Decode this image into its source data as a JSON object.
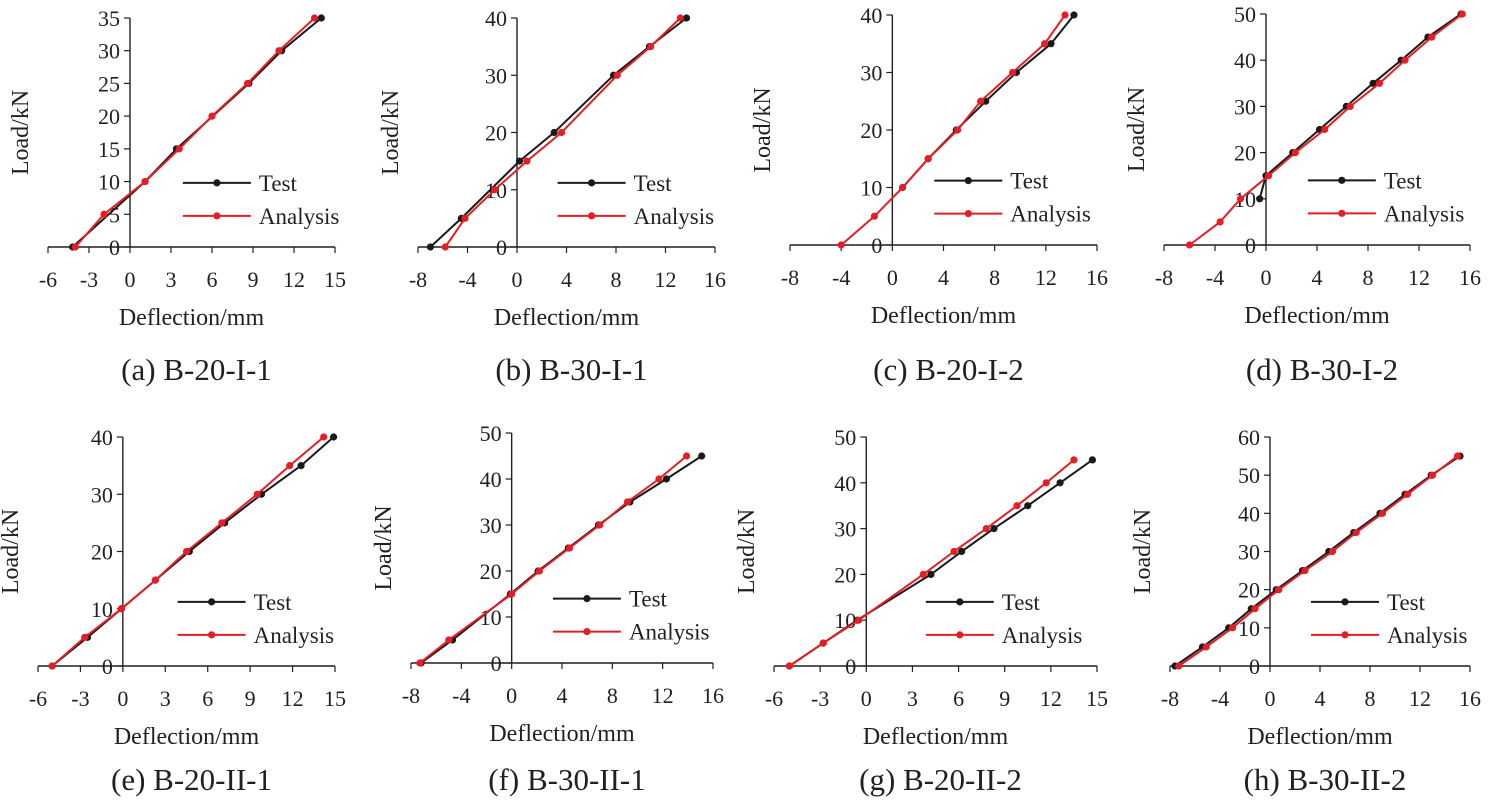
{
  "figure": {
    "colors": {
      "test": "#1a1a1a",
      "analysis": "#e31e24",
      "axis": "#231f20"
    }
  },
  "chart_data": [
    {
      "type": "line",
      "caption": "(a) B-20-I-1",
      "xlabel": "Deflection/mm",
      "ylabel": "Load/kN",
      "xlim": [
        -6,
        15
      ],
      "ylim": [
        0,
        35
      ],
      "xticks": [
        -6,
        -3,
        0,
        3,
        6,
        9,
        12,
        15
      ],
      "yticks": [
        0,
        5,
        10,
        15,
        20,
        25,
        30,
        35
      ],
      "legend": [
        "Test",
        "Analysis"
      ],
      "series": [
        {
          "name": "Test",
          "color": "#1a1a1a",
          "points": [
            [
              -4.2,
              0
            ],
            [
              1.1,
              10
            ],
            [
              3.4,
              15
            ],
            [
              8.7,
              25
            ],
            [
              11.1,
              30
            ],
            [
              14.0,
              35
            ]
          ]
        },
        {
          "name": "Analysis",
          "color": "#e31e24",
          "points": [
            [
              -4.0,
              0
            ],
            [
              -1.9,
              5
            ],
            [
              1.1,
              10
            ],
            [
              3.6,
              15
            ],
            [
              6.0,
              20
            ],
            [
              8.6,
              25
            ],
            [
              10.9,
              30
            ],
            [
              13.5,
              35
            ]
          ]
        }
      ]
    },
    {
      "type": "line",
      "caption": "(b) B-30-I-1",
      "xlabel": "Deflection/mm",
      "ylabel": "Load/kN",
      "xlim": [
        -8,
        16
      ],
      "ylim": [
        0,
        40
      ],
      "xticks": [
        -8,
        -4,
        0,
        4,
        8,
        12,
        16
      ],
      "yticks": [
        0,
        10,
        20,
        30,
        40
      ],
      "legend": [
        "Test",
        "Analysis"
      ],
      "series": [
        {
          "name": "Test",
          "color": "#1a1a1a",
          "points": [
            [
              -7.0,
              0
            ],
            [
              -4.5,
              5
            ],
            [
              0.2,
              15
            ],
            [
              3.0,
              20
            ],
            [
              7.8,
              30
            ],
            [
              10.7,
              35
            ],
            [
              13.7,
              40
            ]
          ]
        },
        {
          "name": "Analysis",
          "color": "#e31e24",
          "points": [
            [
              -5.8,
              0
            ],
            [
              -4.2,
              5
            ],
            [
              -1.8,
              10
            ],
            [
              0.8,
              15
            ],
            [
              3.6,
              20
            ],
            [
              8.1,
              30
            ],
            [
              10.8,
              35
            ],
            [
              13.2,
              40
            ]
          ]
        }
      ]
    },
    {
      "type": "line",
      "caption": "(c) B-20-I-2",
      "xlabel": "Deflection/mm",
      "ylabel": "Load/kN",
      "xlim": [
        -8,
        16
      ],
      "ylim": [
        0,
        40
      ],
      "xticks": [
        -8,
        -4,
        0,
        4,
        8,
        12,
        16
      ],
      "yticks": [
        0,
        10,
        20,
        30,
        40
      ],
      "legend": [
        "Test",
        "Analysis"
      ],
      "series": [
        {
          "name": "Test",
          "color": "#1a1a1a",
          "points": [
            [
              0.8,
              10
            ],
            [
              2.8,
              15
            ],
            [
              5.0,
              20
            ],
            [
              7.3,
              25
            ],
            [
              9.7,
              30
            ],
            [
              12.4,
              35
            ],
            [
              14.2,
              40
            ]
          ]
        },
        {
          "name": "Analysis",
          "color": "#e31e24",
          "points": [
            [
              -4.0,
              0
            ],
            [
              -1.4,
              5
            ],
            [
              0.8,
              10
            ],
            [
              2.8,
              15
            ],
            [
              5.1,
              20
            ],
            [
              6.9,
              25
            ],
            [
              9.4,
              30
            ],
            [
              11.9,
              35
            ],
            [
              13.5,
              40
            ]
          ]
        }
      ]
    },
    {
      "type": "line",
      "caption": "(d) B-30-I-2",
      "xlabel": "Deflection/mm",
      "ylabel": "Load/kN",
      "xlim": [
        -8,
        16
      ],
      "ylim": [
        0,
        50
      ],
      "xticks": [
        -8,
        -4,
        0,
        4,
        8,
        12,
        16
      ],
      "yticks": [
        0,
        10,
        20,
        30,
        40,
        50
      ],
      "legend": [
        "Test",
        "Analysis"
      ],
      "series": [
        {
          "name": "Test",
          "color": "#1a1a1a",
          "points": [
            [
              -0.5,
              10
            ],
            [
              0.0,
              15
            ],
            [
              2.1,
              20
            ],
            [
              4.2,
              25
            ],
            [
              6.3,
              30
            ],
            [
              8.4,
              35
            ],
            [
              10.6,
              40
            ],
            [
              12.7,
              45
            ],
            [
              15.3,
              50
            ]
          ]
        },
        {
          "name": "Analysis",
          "color": "#e31e24",
          "points": [
            [
              -6.0,
              0
            ],
            [
              -3.6,
              5
            ],
            [
              -2.0,
              10
            ],
            [
              0.2,
              15
            ],
            [
              2.3,
              20
            ],
            [
              4.6,
              25
            ],
            [
              6.6,
              30
            ],
            [
              8.9,
              35
            ],
            [
              10.9,
              40
            ],
            [
              13.0,
              45
            ],
            [
              15.4,
              50
            ]
          ]
        }
      ]
    },
    {
      "type": "line",
      "caption": "(e) B-20-II-1",
      "xlabel": "Deflection/mm",
      "ylabel": "Load/kN",
      "xlim": [
        -6,
        15
      ],
      "ylim": [
        0,
        40
      ],
      "xticks": [
        -6,
        -3,
        0,
        3,
        6,
        9,
        12,
        15
      ],
      "yticks": [
        0,
        10,
        20,
        30,
        40
      ],
      "legend": [
        "Test",
        "Analysis"
      ],
      "series": [
        {
          "name": "Test",
          "color": "#1a1a1a",
          "points": [
            [
              -5.0,
              0
            ],
            [
              -2.5,
              5
            ],
            [
              -0.1,
              10
            ],
            [
              2.3,
              15
            ],
            [
              4.7,
              20
            ],
            [
              7.2,
              25
            ],
            [
              9.8,
              30
            ],
            [
              12.6,
              35
            ],
            [
              14.9,
              40
            ]
          ]
        },
        {
          "name": "Analysis",
          "color": "#e31e24",
          "points": [
            [
              -5.0,
              0
            ],
            [
              -2.7,
              5
            ],
            [
              -0.1,
              10
            ],
            [
              2.3,
              15
            ],
            [
              4.5,
              20
            ],
            [
              7.0,
              25
            ],
            [
              9.5,
              30
            ],
            [
              11.8,
              35
            ],
            [
              14.2,
              40
            ]
          ]
        }
      ]
    },
    {
      "type": "line",
      "caption": "(f) B-30-II-1",
      "xlabel": "Deflection/mm",
      "ylabel": "Load/kN",
      "xlim": [
        -8,
        16
      ],
      "ylim": [
        0,
        50
      ],
      "xticks": [
        -8,
        -4,
        0,
        4,
        8,
        12,
        16
      ],
      "yticks": [
        0,
        10,
        20,
        30,
        40,
        50
      ],
      "legend": [
        "Test",
        "Analysis"
      ],
      "series": [
        {
          "name": "Test",
          "color": "#1a1a1a",
          "points": [
            [
              -7.2,
              0
            ],
            [
              -4.7,
              5
            ],
            [
              -0.1,
              15
            ],
            [
              2.1,
              20
            ],
            [
              4.5,
              25
            ],
            [
              6.9,
              30
            ],
            [
              9.4,
              35
            ],
            [
              12.3,
              40
            ],
            [
              15.1,
              45
            ]
          ]
        },
        {
          "name": "Analysis",
          "color": "#e31e24",
          "points": [
            [
              -7.3,
              0
            ],
            [
              -5.0,
              5
            ],
            [
              0.0,
              15
            ],
            [
              2.2,
              20
            ],
            [
              4.6,
              25
            ],
            [
              7.0,
              30
            ],
            [
              9.2,
              35
            ],
            [
              11.7,
              40
            ],
            [
              13.9,
              45
            ]
          ]
        }
      ]
    },
    {
      "type": "line",
      "caption": "(g) B-20-II-2",
      "xlabel": "Deflection/mm",
      "ylabel": "Load/kN",
      "xlim": [
        -6,
        15
      ],
      "ylim": [
        0,
        50
      ],
      "xticks": [
        -6,
        -3,
        0,
        3,
        6,
        9,
        12,
        15
      ],
      "yticks": [
        0,
        10,
        20,
        30,
        40,
        50
      ],
      "legend": [
        "Test",
        "Analysis"
      ],
      "series": [
        {
          "name": "Test",
          "color": "#1a1a1a",
          "points": [
            [
              -5.0,
              0
            ],
            [
              -2.8,
              5
            ],
            [
              -0.6,
              10
            ],
            [
              4.2,
              20
            ],
            [
              6.2,
              25
            ],
            [
              8.3,
              30
            ],
            [
              10.5,
              35
            ],
            [
              12.6,
              40
            ],
            [
              14.7,
              45
            ]
          ]
        },
        {
          "name": "Analysis",
          "color": "#e31e24",
          "points": [
            [
              -5.0,
              0
            ],
            [
              -2.8,
              5
            ],
            [
              -0.5,
              10
            ],
            [
              3.7,
              20
            ],
            [
              5.7,
              25
            ],
            [
              7.8,
              30
            ],
            [
              9.8,
              35
            ],
            [
              11.7,
              40
            ],
            [
              13.5,
              45
            ]
          ]
        }
      ]
    },
    {
      "type": "line",
      "caption": "(h) B-30-II-2",
      "xlabel": "Deflection/mm",
      "ylabel": "Load/kN",
      "xlim": [
        -8,
        16
      ],
      "ylim": [
        0,
        60
      ],
      "xticks": [
        -8,
        -4,
        0,
        4,
        8,
        12,
        16
      ],
      "yticks": [
        0,
        10,
        20,
        30,
        40,
        50,
        60
      ],
      "legend": [
        "Test",
        "Analysis"
      ],
      "series": [
        {
          "name": "Test",
          "color": "#1a1a1a",
          "points": [
            [
              -7.6,
              0
            ],
            [
              -5.4,
              5
            ],
            [
              -3.3,
              10
            ],
            [
              -1.5,
              15
            ],
            [
              0.5,
              20
            ],
            [
              2.6,
              25
            ],
            [
              4.7,
              30
            ],
            [
              6.7,
              35
            ],
            [
              8.8,
              40
            ],
            [
              10.8,
              45
            ],
            [
              12.9,
              50
            ],
            [
              15.2,
              55
            ]
          ]
        },
        {
          "name": "Analysis",
          "color": "#e31e24",
          "points": [
            [
              -7.3,
              0
            ],
            [
              -5.1,
              5
            ],
            [
              -3.0,
              10
            ],
            [
              -1.2,
              15
            ],
            [
              0.7,
              20
            ],
            [
              2.8,
              25
            ],
            [
              5.0,
              30
            ],
            [
              6.9,
              35
            ],
            [
              9.0,
              40
            ],
            [
              11.0,
              45
            ],
            [
              13.0,
              50
            ],
            [
              15.0,
              55
            ]
          ]
        }
      ]
    }
  ]
}
